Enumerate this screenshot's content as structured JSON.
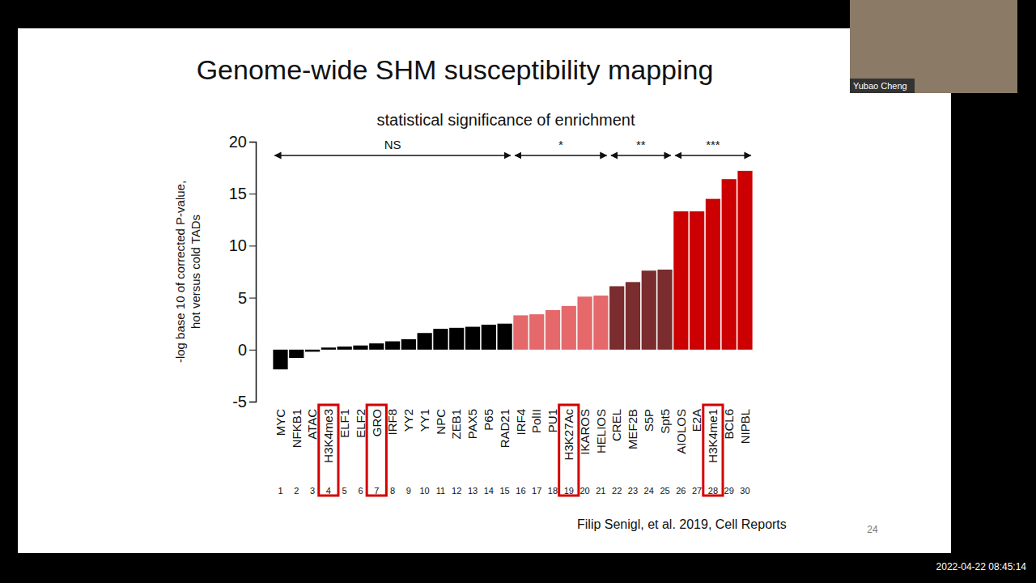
{
  "slide": {
    "title": "Genome-wide SHM susceptibility mapping",
    "citation": "Filip Senigl, et al. 2019, Cell Reports",
    "page_number": "24",
    "timestamp": "2022-04-22 08:45:14",
    "speaker": "Yubao Cheng"
  },
  "chart_data": {
    "type": "bar",
    "title": "statistical significance of enrichment",
    "y_label": [
      "-log base 10 of corrected P-value,",
      "hot versus cold TADs"
    ],
    "categories": [
      "MYC",
      "NFKB1",
      "ATAC",
      "H3K4me3",
      "ELF1",
      "ELF2",
      "GRO",
      "IRF8",
      "YY2",
      "YY1",
      "NPC",
      "ZEB1",
      "PAX5",
      "P65",
      "RAD21",
      "IRF4",
      "PolII",
      "PU1",
      "H3K27Ac",
      "IKAROS",
      "HELIOS",
      "CREL",
      "MEF2B",
      "S5P",
      "Spt5",
      "AIOLOS",
      "E2A",
      "H3K4me1",
      "BCL6",
      "NIPBL"
    ],
    "values": [
      -1.9,
      -0.8,
      -0.2,
      0.2,
      0.3,
      0.4,
      0.6,
      0.8,
      1.0,
      1.6,
      2.0,
      2.1,
      2.2,
      2.4,
      2.5,
      3.3,
      3.4,
      3.8,
      4.2,
      5.1,
      5.2,
      6.1,
      6.5,
      7.6,
      7.7,
      13.3,
      13.3,
      14.5,
      16.4,
      17.2
    ],
    "position_numbers": [
      1,
      2,
      3,
      4,
      5,
      6,
      7,
      8,
      9,
      10,
      11,
      12,
      13,
      14,
      15,
      16,
      17,
      18,
      19,
      20,
      21,
      22,
      23,
      24,
      25,
      26,
      27,
      28,
      29,
      30
    ],
    "colors": [
      "#000000",
      "#000000",
      "#000000",
      "#000000",
      "#000000",
      "#000000",
      "#000000",
      "#000000",
      "#000000",
      "#000000",
      "#000000",
      "#000000",
      "#000000",
      "#000000",
      "#000000",
      "#e5686b",
      "#e5686b",
      "#e5686b",
      "#e5686b",
      "#e5686b",
      "#e5686b",
      "#7a2c2e",
      "#7a2c2e",
      "#7a2c2e",
      "#7a2c2e",
      "#cc0000",
      "#cc0000",
      "#cc0000",
      "#cc0000",
      "#cc0000"
    ],
    "ylim": [
      -5,
      20
    ],
    "yticks": [
      -5,
      0,
      5,
      10,
      15,
      20
    ],
    "annotations": [
      {
        "label": "NS",
        "start": "MYC",
        "end": "RAD21"
      },
      {
        "label": "*",
        "start": "IRF4",
        "end": "HELIOS"
      },
      {
        "label": "**",
        "start": "CREL",
        "end": "Spt5"
      },
      {
        "label": "***",
        "start": "AIOLOS",
        "end": "NIPBL"
      }
    ],
    "highlight": [
      "H3K4me3",
      "GRO",
      "H3K27Ac",
      "H3K4me1"
    ]
  }
}
